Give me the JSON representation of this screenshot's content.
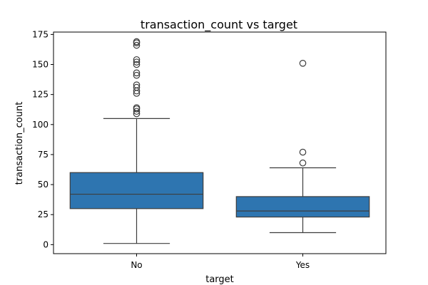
{
  "chart_data": {
    "type": "box",
    "title": "transaction_count vs target",
    "xlabel": "target",
    "ylabel": "transaction_count",
    "categories": [
      "No",
      "Yes"
    ],
    "yticks": [
      0,
      25,
      50,
      75,
      100,
      125,
      150,
      175
    ],
    "ylim": [
      -7.5,
      177
    ],
    "box_color": "#2e75b0",
    "line_color": "#3d3d3d",
    "grid": false,
    "boxes": [
      {
        "category": "No",
        "whisker_low": 1,
        "q1": 30,
        "median": 42,
        "q3": 60,
        "whisker_high": 105,
        "outliers": [
          109,
          111,
          113,
          114,
          126,
          128,
          131,
          133,
          141,
          143,
          150,
          152,
          154,
          166,
          168,
          169
        ]
      },
      {
        "category": "Yes",
        "whisker_low": 10,
        "q1": 23,
        "median": 28,
        "q3": 40,
        "whisker_high": 64,
        "outliers": [
          68,
          77,
          151
        ]
      }
    ]
  }
}
